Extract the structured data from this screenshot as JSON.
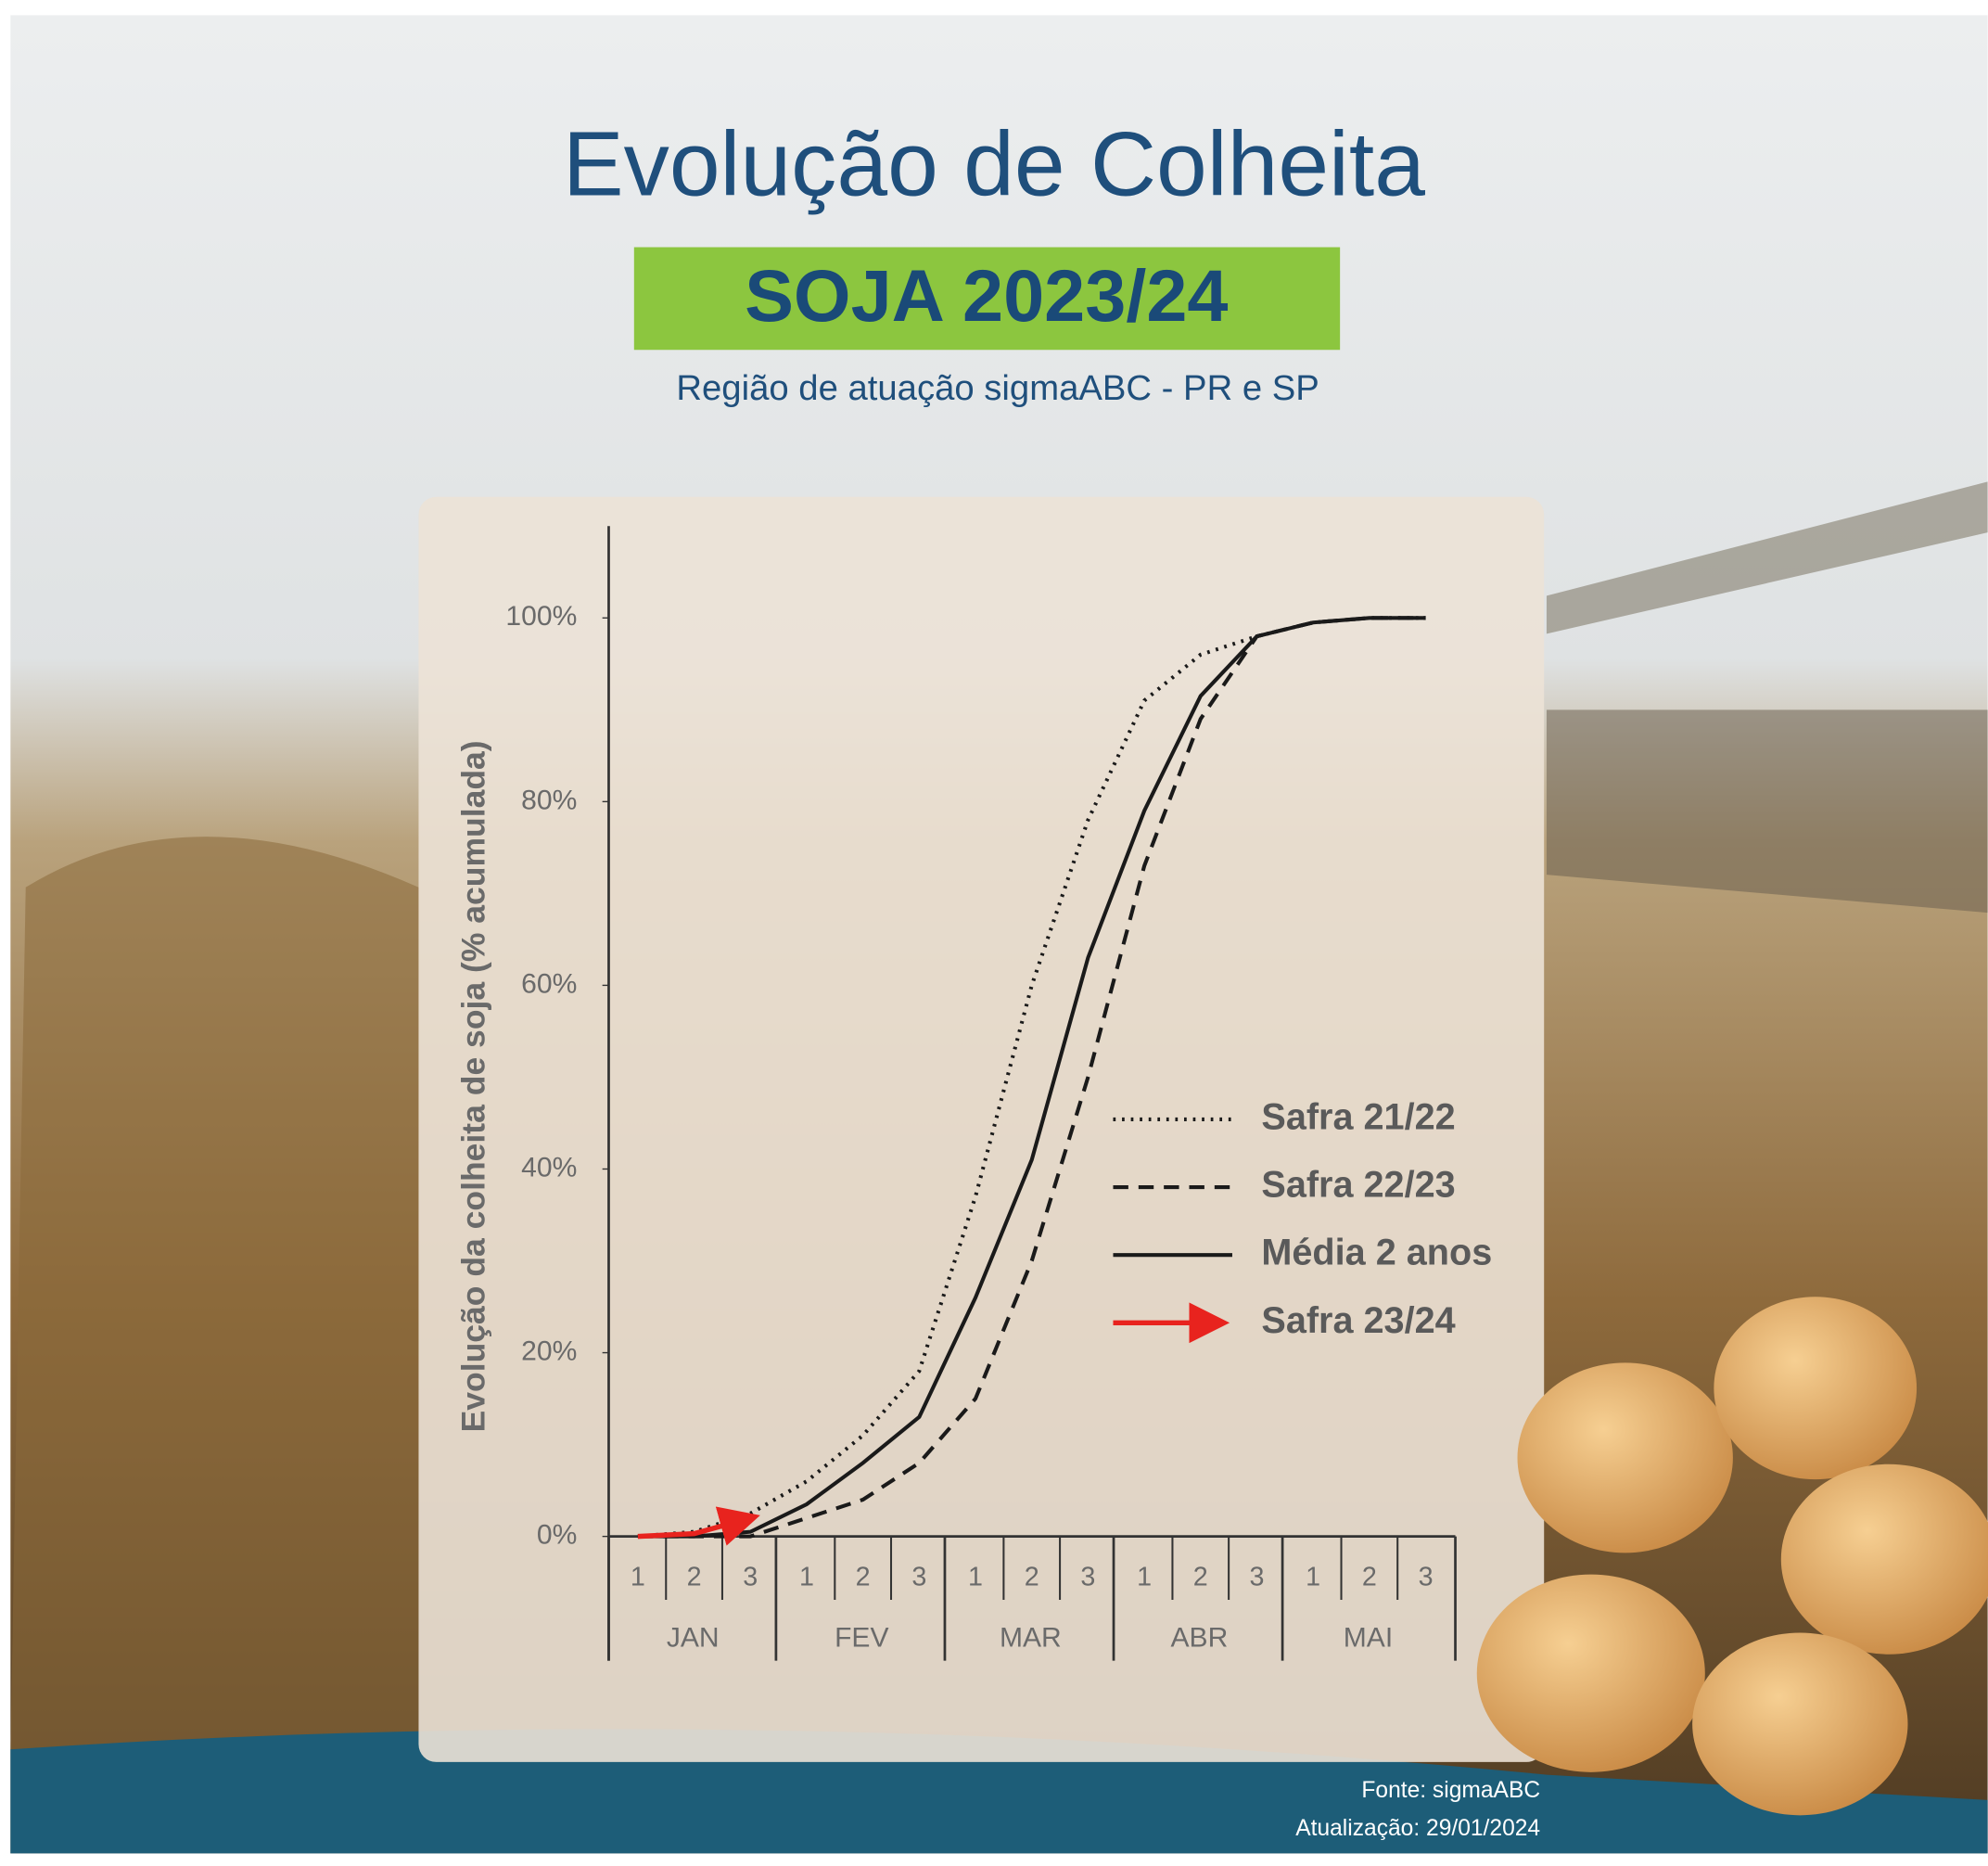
{
  "chart_data": {
    "type": "line",
    "title": "Evolução de Colheita",
    "subtitle": "SOJA 2023/24",
    "region": "Região de atuação sigmaABC - PR e SP",
    "y_label": "Evolução da colheita de soja (% acumulada)",
    "categories": [
      "1",
      "2",
      "3",
      "1",
      "2",
      "3",
      "1",
      "2",
      "3",
      "1",
      "2",
      "3",
      "1",
      "2",
      "3"
    ],
    "months": [
      "JAN",
      "FEV",
      "MAR",
      "ABR",
      "MAI"
    ],
    "ylim": [
      0,
      110
    ],
    "yticks": [
      {
        "value": 0,
        "label": "0%"
      },
      {
        "value": 20,
        "label": "20%"
      },
      {
        "value": 40,
        "label": "40%"
      },
      {
        "value": 60,
        "label": "60%"
      },
      {
        "value": 80,
        "label": "80%"
      },
      {
        "value": 100,
        "label": "100%"
      }
    ],
    "grid": false,
    "series": [
      {
        "name": "Safra 21/22",
        "color": "#1a1a1a",
        "style": "dotted",
        "values": [
          0,
          0.5,
          2.5,
          6,
          11,
          18,
          37,
          60,
          78,
          91,
          96,
          98,
          99.5,
          100,
          100
        ]
      },
      {
        "name": "Safra 22/23",
        "color": "#1a1a1a",
        "style": "dashed",
        "values": [
          0,
          0,
          0,
          2,
          4,
          8,
          15,
          30,
          50,
          73,
          89,
          98,
          99.5,
          100,
          100
        ]
      },
      {
        "name": "Média 2 anos",
        "color": "#1a1a1a",
        "style": "solid",
        "values": [
          0,
          0,
          0.5,
          3.5,
          8,
          13,
          26,
          41,
          63,
          79,
          91.5,
          98,
          99.5,
          100,
          100
        ]
      },
      {
        "name": "Safra 23/24",
        "color": "#e8231e",
        "style": "arrow",
        "values": [
          0,
          0.3,
          2,
          null,
          null,
          null,
          null,
          null,
          null,
          null,
          null,
          null,
          null,
          null,
          null
        ]
      }
    ],
    "source": "Fonte: sigmaABC",
    "updated": "Atualização: 29/01/2024"
  }
}
